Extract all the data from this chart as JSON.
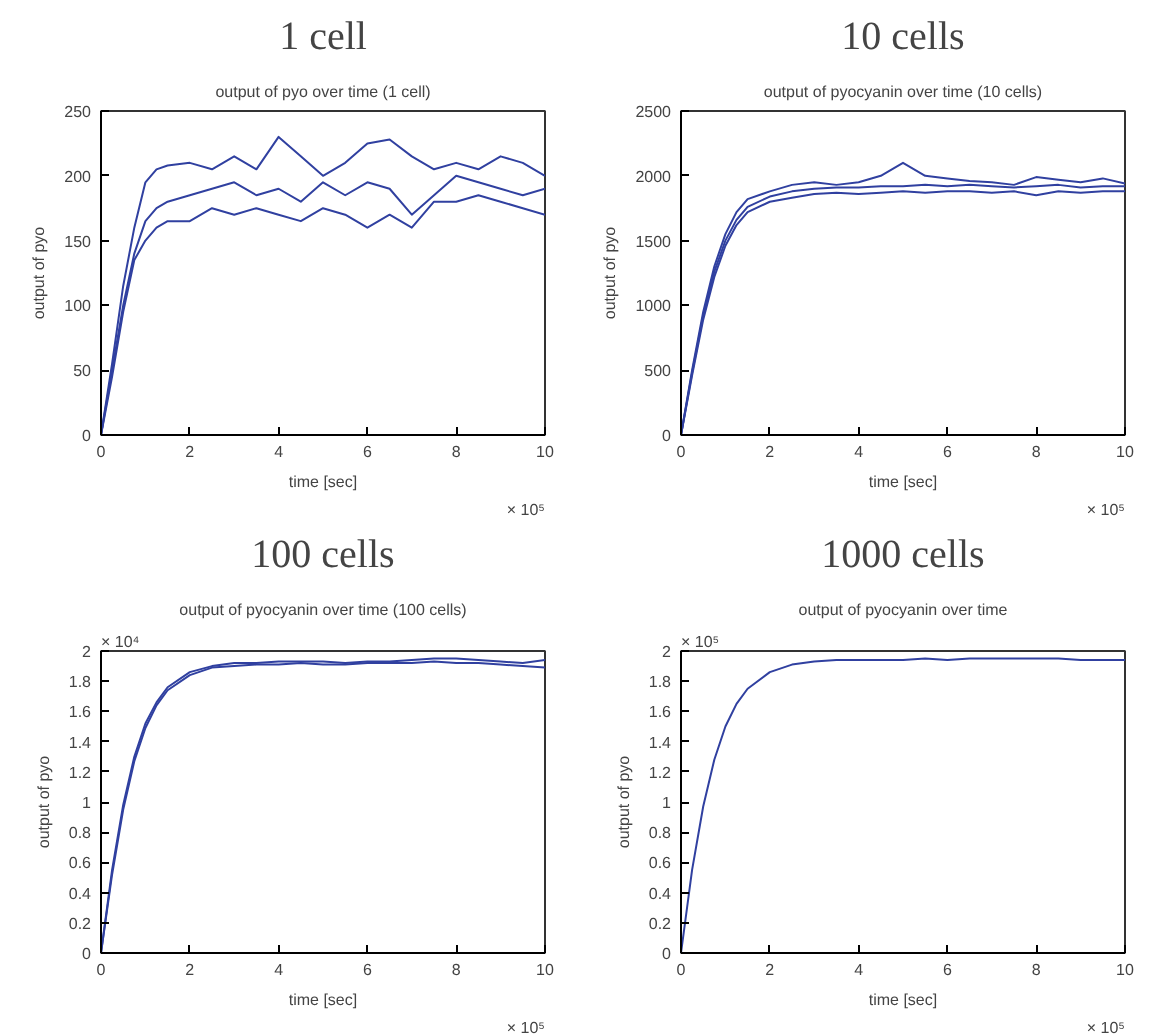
{
  "chart_data": [
    {
      "type": "line",
      "title": "1 cell",
      "subtitle": "output of pyo over time (1 cell)",
      "xlabel": "time [sec]",
      "ylabel": "output of pyo",
      "xlim": [
        0,
        10
      ],
      "ylim": [
        0,
        250
      ],
      "xticks": [
        0,
        2,
        4,
        6,
        8,
        10
      ],
      "yticks": [
        0,
        50,
        100,
        150,
        200,
        250
      ],
      "grid": false,
      "annotations": [
        "× 10⁵"
      ],
      "x": [
        0,
        0.25,
        0.5,
        0.75,
        1,
        1.25,
        1.5,
        2,
        2.5,
        3,
        3.5,
        4,
        4.5,
        5,
        5.5,
        6,
        6.5,
        7,
        7.5,
        8,
        8.5,
        9,
        9.5,
        10
      ],
      "series": [
        {
          "color": "#3040a0",
          "values": [
            0,
            55,
            115,
            160,
            195,
            205,
            208,
            210,
            205,
            215,
            205,
            230,
            215,
            200,
            210,
            225,
            228,
            215,
            205,
            210,
            205,
            215,
            210,
            200
          ]
        },
        {
          "color": "#3040a0",
          "values": [
            0,
            50,
            100,
            140,
            165,
            175,
            180,
            185,
            190,
            195,
            185,
            190,
            180,
            195,
            185,
            195,
            190,
            170,
            185,
            200,
            195,
            190,
            185,
            190
          ]
        },
        {
          "color": "#3040a0",
          "values": [
            0,
            45,
            95,
            135,
            150,
            160,
            165,
            165,
            175,
            170,
            175,
            170,
            165,
            175,
            170,
            160,
            170,
            160,
            180,
            180,
            185,
            180,
            175,
            170
          ]
        }
      ]
    },
    {
      "type": "line",
      "title": "10 cells",
      "subtitle": "output of pyocyanin over time (10 cells)",
      "xlabel": "time [sec]",
      "ylabel": "output of pyo",
      "xlim": [
        0,
        10
      ],
      "ylim": [
        0,
        2500
      ],
      "xticks": [
        0,
        2,
        4,
        6,
        8,
        10
      ],
      "yticks": [
        0,
        500,
        1000,
        1500,
        2000,
        2500
      ],
      "grid": false,
      "annotations": [
        "× 10⁵"
      ],
      "x": [
        0,
        0.25,
        0.5,
        0.75,
        1,
        1.25,
        1.5,
        2,
        2.5,
        3,
        3.5,
        4,
        4.5,
        5,
        5.5,
        6,
        6.5,
        7,
        7.5,
        8,
        8.5,
        9,
        9.5,
        10
      ],
      "series": [
        {
          "color": "#3040a0",
          "values": [
            0,
            500,
            950,
            1300,
            1550,
            1720,
            1820,
            1880,
            1930,
            1950,
            1930,
            1950,
            2000,
            2100,
            2000,
            1980,
            1960,
            1950,
            1930,
            1990,
            1970,
            1950,
            1980,
            1940
          ]
        },
        {
          "color": "#3040a0",
          "values": [
            0,
            480,
            920,
            1260,
            1500,
            1660,
            1760,
            1840,
            1880,
            1900,
            1910,
            1910,
            1920,
            1920,
            1930,
            1920,
            1930,
            1920,
            1910,
            1920,
            1930,
            1910,
            1920,
            1920
          ]
        },
        {
          "color": "#3040a0",
          "values": [
            0,
            460,
            890,
            1220,
            1460,
            1620,
            1720,
            1800,
            1830,
            1860,
            1870,
            1860,
            1870,
            1880,
            1870,
            1880,
            1880,
            1870,
            1880,
            1850,
            1880,
            1870,
            1880,
            1880
          ]
        }
      ]
    },
    {
      "type": "line",
      "title": "100 cells",
      "subtitle": "output of pyocyanin over time (100 cells)",
      "xlabel": "time [sec]",
      "ylabel": "output of pyo",
      "xlim": [
        0,
        10
      ],
      "ylim": [
        0,
        2
      ],
      "xticks": [
        0,
        2,
        4,
        6,
        8,
        10
      ],
      "yticks": [
        0,
        0.2,
        0.4,
        0.6,
        0.8,
        1,
        1.2,
        1.4,
        1.6,
        1.8,
        2
      ],
      "grid": false,
      "annotations": [
        "× 10⁴",
        "× 10⁵"
      ],
      "x": [
        0,
        0.25,
        0.5,
        0.75,
        1,
        1.25,
        1.5,
        2,
        2.5,
        3,
        3.5,
        4,
        4.5,
        5,
        5.5,
        6,
        6.5,
        7,
        7.5,
        8,
        8.5,
        9,
        9.5,
        10
      ],
      "series": [
        {
          "color": "#3040a0",
          "values": [
            0,
            0.55,
            0.98,
            1.3,
            1.52,
            1.66,
            1.76,
            1.86,
            1.9,
            1.92,
            1.92,
            1.93,
            1.93,
            1.93,
            1.92,
            1.93,
            1.93,
            1.94,
            1.95,
            1.95,
            1.94,
            1.93,
            1.92,
            1.94
          ]
        },
        {
          "color": "#3040a0",
          "values": [
            0,
            0.52,
            0.95,
            1.27,
            1.49,
            1.64,
            1.74,
            1.84,
            1.89,
            1.9,
            1.91,
            1.91,
            1.92,
            1.91,
            1.91,
            1.92,
            1.92,
            1.92,
            1.93,
            1.92,
            1.92,
            1.91,
            1.9,
            1.89
          ]
        }
      ]
    },
    {
      "type": "line",
      "title": "1000 cells",
      "subtitle": "output of pyocyanin over time",
      "xlabel": "time [sec]",
      "ylabel": "output of pyo",
      "xlim": [
        0,
        10
      ],
      "ylim": [
        0,
        2
      ],
      "xticks": [
        0,
        2,
        4,
        6,
        8,
        10
      ],
      "yticks": [
        0,
        0.2,
        0.4,
        0.6,
        0.8,
        1,
        1.2,
        1.4,
        1.6,
        1.8,
        2
      ],
      "grid": false,
      "annotations": [
        "× 10⁵",
        "× 10⁵"
      ],
      "x": [
        0,
        0.25,
        0.5,
        0.75,
        1,
        1.25,
        1.5,
        2,
        2.5,
        3,
        3.5,
        4,
        4.5,
        5,
        5.5,
        6,
        6.5,
        7,
        7.5,
        8,
        8.5,
        9,
        9.5,
        10
      ],
      "series": [
        {
          "color": "#3040a0",
          "values": [
            0,
            0.55,
            0.97,
            1.28,
            1.5,
            1.65,
            1.75,
            1.86,
            1.91,
            1.93,
            1.94,
            1.94,
            1.94,
            1.94,
            1.95,
            1.94,
            1.95,
            1.95,
            1.95,
            1.95,
            1.95,
            1.94,
            1.94,
            1.94
          ]
        }
      ]
    }
  ]
}
